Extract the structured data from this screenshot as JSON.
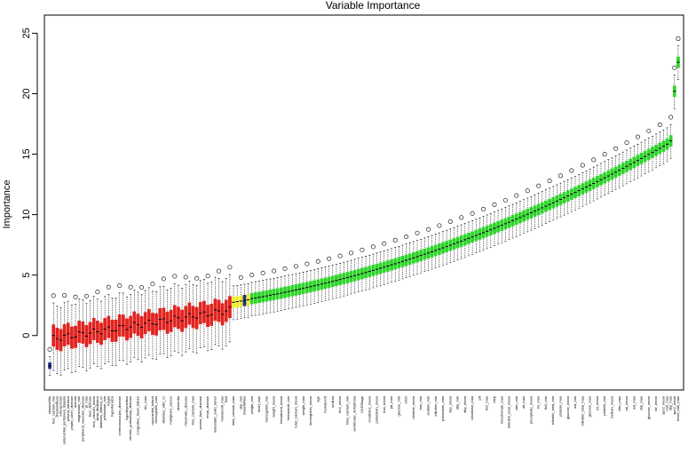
{
  "colors": {
    "rejected": "#e0231f",
    "tentative": "#f2ec2a",
    "confirmed": "#2ed52a",
    "shadow": "#1f2f8a",
    "border": "#000000"
  },
  "chart_data": {
    "type": "boxplot",
    "title": "Variable Importance",
    "xlabel": "",
    "ylabel": "Importance",
    "ylim": [
      -4.5,
      26.5
    ],
    "yticks": [
      0,
      5,
      10,
      15,
      20,
      25
    ],
    "grid": false,
    "legend": "none",
    "categories": [
      "shadowMin",
      "free_calcium_min",
      "shadowMean",
      "osteoporosis",
      "antecubital_peritoneal_dialysis",
      "pleural_effusion",
      "peptic_ulcer_disease",
      "anemia",
      "magnesium_min",
      "peripheral_vascular_disease",
      "pt_max",
      "liver_disease",
      "free_calcium_mean",
      "atrial_fibrillation",
      "diabetes_without_cc",
      "potassium_min",
      "height",
      "hypertension",
      "",
      "cerebrovascular_disease",
      "",
      "hypothyroidism",
      "chronic_pulmonary_disease",
      "",
      "congestive_heart_failure",
      "",
      "rbc_max",
      "",
      "myocardial_infarct",
      "hemoglobin_max",
      "",
      "diabetes_with_cc",
      "",
      "malignant_cancer",
      "",
      "dementia",
      "",
      "rheumatic_disease",
      "",
      "free_calcium_max",
      "",
      "severe_liver_disease",
      "",
      "renal_disease",
      "",
      "metastatic_solid_tumor",
      "",
      "hematocrit_max",
      "BMI",
      "",
      "total_calcium_max",
      "",
      "sbp_min",
      "shadowMax",
      "",
      "weight_min",
      "",
      "heart_rate",
      "",
      "hemoglobin_min",
      "",
      "weight_mean",
      "",
      "hematocrit_mean",
      "",
      "hematocrit_min",
      "",
      "total_calcium_mean",
      "",
      "weight_max",
      "",
      "hemoglobin_mean",
      "",
      "age",
      "",
      "hematocrit",
      "",
      "sodium",
      "",
      "fio2_mean",
      "",
      "total_calcium_min",
      "",
      "ventricular_arrhythmia",
      "",
      "CKDStage",
      "",
      "creatinine_mean",
      "",
      "potassium_mean",
      "",
      "bun_mean",
      "",
      "ptt_max",
      "",
      "glucose_min",
      "",
      "CKD",
      "",
      "chloride_mean",
      "",
      "bun_min",
      "",
      "sodium_min",
      "",
      "bilirubin_min",
      "",
      "potassium_max",
      "",
      "sbp_mean",
      "",
      "dbp_min",
      "",
      "dbp_mean",
      "",
      "creatinine_max",
      "",
      "ptt",
      "",
      "fio2_max",
      "",
      "mbp",
      "",
      "bicarbonate_max",
      "",
      "bilirubin_total_mean",
      "",
      "wbc_min",
      "",
      "alt_max",
      "",
      "phosphate_mean",
      "",
      "inr_max",
      "",
      "fio2_min",
      "",
      "bilirubin_total_min",
      "",
      "platelet_max",
      "",
      "glucose_mean",
      "",
      "ast_min",
      "",
      "bilirubin_total_max",
      "",
      "glucose_max",
      "",
      "pt_mean",
      "",
      "platelet_min",
      "",
      "sodium_mean",
      "",
      "wbc_max",
      "",
      "alt_mean",
      "",
      "ast_max",
      "",
      "sbp_max",
      "",
      "glucose_mean",
      "",
      "inr_mean",
      "",
      "spo2_mean",
      "bun_max",
      "dbp_max",
      "spo2_mean",
      "heart_rate_max"
    ],
    "n_rejected": 49,
    "n_tentative": 5,
    "shadow_indices": [
      0,
      53
    ],
    "values_min": -2.5,
    "values_max": 22.6,
    "note_values": "medians rising from about -2.5 (shadowMin) through ~0-2 (rejected), ~2.7-2.9 (tentative), 3 to 16 (confirmed), ending near 20.2 and 22.6"
  }
}
